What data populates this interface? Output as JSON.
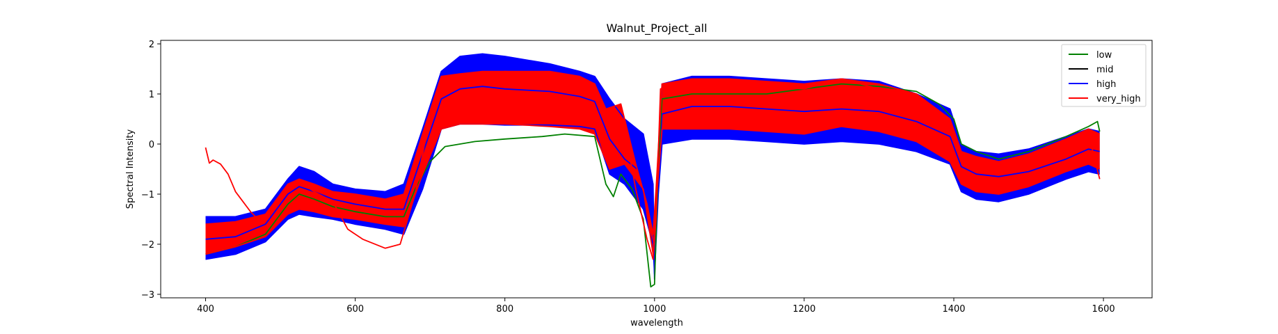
{
  "chart_data": {
    "type": "line",
    "title": "Walnut_Project_all",
    "xlabel": "wavelength",
    "ylabel": "Spectral Intensity",
    "xlim": [
      340,
      1665
    ],
    "ylim": [
      -3.07,
      2.07
    ],
    "xticks": [
      400,
      600,
      800,
      1000,
      1200,
      1400,
      1600
    ],
    "yticks": [
      -3,
      -2,
      -1,
      0,
      1,
      2
    ],
    "grid": false,
    "legend_position": "top-right",
    "series": [
      {
        "name": "low",
        "color": "#008000"
      },
      {
        "name": "mid",
        "color": "#000000"
      },
      {
        "name": "high",
        "color": "#0000ff"
      },
      {
        "name": "very_high",
        "color": "#ff0000"
      }
    ],
    "curves": [
      {
        "series": "high",
        "points": [
          [
            400,
            -1.45
          ],
          [
            440,
            -1.45
          ],
          [
            480,
            -1.3
          ],
          [
            510,
            -0.7
          ],
          [
            525,
            -0.45
          ],
          [
            545,
            -0.55
          ],
          [
            570,
            -0.8
          ],
          [
            600,
            -0.9
          ],
          [
            640,
            -0.95
          ],
          [
            665,
            -0.8
          ],
          [
            690,
            0.3
          ],
          [
            715,
            1.45
          ],
          [
            740,
            1.75
          ],
          [
            770,
            1.8
          ],
          [
            800,
            1.75
          ],
          [
            860,
            1.6
          ],
          [
            900,
            1.45
          ],
          [
            920,
            1.35
          ],
          [
            940,
            0.9
          ],
          [
            960,
            0.5
          ],
          [
            985,
            0.2
          ],
          [
            998,
            -0.8
          ],
          [
            1000,
            -2.7
          ],
          [
            1005,
            -0.3
          ],
          [
            1010,
            1.2
          ],
          [
            1050,
            1.35
          ],
          [
            1100,
            1.35
          ],
          [
            1150,
            1.3
          ],
          [
            1200,
            1.25
          ],
          [
            1250,
            1.3
          ],
          [
            1300,
            1.25
          ],
          [
            1350,
            1.0
          ],
          [
            1395,
            0.7
          ],
          [
            1410,
            0.0
          ],
          [
            1430,
            -0.15
          ],
          [
            1460,
            -0.2
          ],
          [
            1500,
            -0.1
          ],
          [
            1550,
            0.15
          ],
          [
            1580,
            0.3
          ],
          [
            1595,
            0.25
          ]
        ]
      },
      {
        "series": "high",
        "points": [
          [
            400,
            -2.3
          ],
          [
            440,
            -2.2
          ],
          [
            480,
            -1.95
          ],
          [
            510,
            -1.5
          ],
          [
            525,
            -1.4
          ],
          [
            545,
            -1.45
          ],
          [
            570,
            -1.5
          ],
          [
            600,
            -1.6
          ],
          [
            640,
            -1.7
          ],
          [
            665,
            -1.8
          ],
          [
            690,
            -0.9
          ],
          [
            715,
            0.3
          ],
          [
            740,
            0.4
          ],
          [
            770,
            0.4
          ],
          [
            800,
            0.38
          ],
          [
            860,
            0.38
          ],
          [
            900,
            0.35
          ],
          [
            920,
            0.3
          ],
          [
            940,
            -0.6
          ],
          [
            960,
            -0.8
          ],
          [
            985,
            -1.3
          ],
          [
            998,
            -2.0
          ],
          [
            1000,
            -2.6
          ],
          [
            1005,
            -1.0
          ],
          [
            1010,
            0.0
          ],
          [
            1050,
            0.1
          ],
          [
            1100,
            0.1
          ],
          [
            1150,
            0.05
          ],
          [
            1200,
            0.0
          ],
          [
            1250,
            0.05
          ],
          [
            1300,
            0.0
          ],
          [
            1350,
            -0.15
          ],
          [
            1395,
            -0.4
          ],
          [
            1410,
            -0.95
          ],
          [
            1430,
            -1.1
          ],
          [
            1460,
            -1.15
          ],
          [
            1500,
            -1.0
          ],
          [
            1550,
            -0.7
          ],
          [
            1580,
            -0.55
          ],
          [
            1595,
            -0.6
          ]
        ]
      },
      {
        "series": "high",
        "points": [
          [
            400,
            -1.9
          ],
          [
            440,
            -1.85
          ],
          [
            480,
            -1.6
          ],
          [
            510,
            -1.0
          ],
          [
            525,
            -0.85
          ],
          [
            545,
            -0.95
          ],
          [
            570,
            -1.1
          ],
          [
            600,
            -1.2
          ],
          [
            640,
            -1.3
          ],
          [
            665,
            -1.3
          ],
          [
            690,
            -0.2
          ],
          [
            715,
            0.9
          ],
          [
            740,
            1.1
          ],
          [
            770,
            1.15
          ],
          [
            800,
            1.1
          ],
          [
            860,
            1.05
          ],
          [
            900,
            0.95
          ],
          [
            920,
            0.85
          ],
          [
            940,
            0.1
          ],
          [
            960,
            -0.3
          ],
          [
            985,
            -0.6
          ],
          [
            998,
            -1.5
          ],
          [
            1000,
            -2.4
          ],
          [
            1005,
            -0.6
          ],
          [
            1010,
            0.6
          ],
          [
            1050,
            0.75
          ],
          [
            1100,
            0.75
          ],
          [
            1150,
            0.7
          ],
          [
            1200,
            0.65
          ],
          [
            1250,
            0.7
          ],
          [
            1300,
            0.65
          ],
          [
            1350,
            0.45
          ],
          [
            1395,
            0.15
          ],
          [
            1410,
            -0.45
          ],
          [
            1430,
            -0.6
          ],
          [
            1460,
            -0.65
          ],
          [
            1500,
            -0.55
          ],
          [
            1550,
            -0.3
          ],
          [
            1580,
            -0.1
          ],
          [
            1595,
            -0.15
          ]
        ]
      },
      {
        "series": "low",
        "points": [
          [
            400,
            -2.2
          ],
          [
            440,
            -2.05
          ],
          [
            480,
            -1.8
          ],
          [
            510,
            -1.2
          ],
          [
            525,
            -1.0
          ],
          [
            545,
            -1.1
          ],
          [
            570,
            -1.25
          ],
          [
            600,
            -1.35
          ],
          [
            640,
            -1.45
          ],
          [
            665,
            -1.45
          ],
          [
            680,
            -0.9
          ],
          [
            700,
            -0.35
          ],
          [
            720,
            -0.05
          ],
          [
            760,
            0.05
          ],
          [
            800,
            0.1
          ],
          [
            850,
            0.15
          ],
          [
            880,
            0.2
          ],
          [
            920,
            0.15
          ],
          [
            935,
            -0.8
          ],
          [
            945,
            -1.05
          ],
          [
            955,
            -0.6
          ],
          [
            970,
            -0.9
          ],
          [
            985,
            -1.5
          ],
          [
            995,
            -2.85
          ],
          [
            1000,
            -2.8
          ],
          [
            1005,
            -0.4
          ],
          [
            1010,
            0.9
          ],
          [
            1050,
            1.0
          ],
          [
            1100,
            1.0
          ],
          [
            1150,
            1.0
          ],
          [
            1200,
            1.1
          ],
          [
            1250,
            1.2
          ],
          [
            1300,
            1.15
          ],
          [
            1350,
            1.05
          ],
          [
            1380,
            0.8
          ],
          [
            1400,
            0.5
          ],
          [
            1410,
            0.0
          ],
          [
            1430,
            -0.15
          ],
          [
            1460,
            -0.3
          ],
          [
            1500,
            -0.15
          ],
          [
            1550,
            0.15
          ],
          [
            1580,
            0.35
          ],
          [
            1592,
            0.45
          ],
          [
            1595,
            0.25
          ]
        ]
      },
      {
        "series": "very_high",
        "points": [
          [
            400,
            -0.07
          ],
          [
            405,
            -0.38
          ],
          [
            410,
            -0.32
          ],
          [
            420,
            -0.4
          ],
          [
            430,
            -0.6
          ],
          [
            440,
            -0.95
          ],
          [
            450,
            -1.15
          ],
          [
            460,
            -1.35
          ],
          [
            470,
            -1.5
          ],
          [
            490,
            -1.35
          ],
          [
            510,
            -0.9
          ],
          [
            525,
            -0.75
          ],
          [
            545,
            -0.95
          ],
          [
            570,
            -1.15
          ],
          [
            590,
            -1.7
          ],
          [
            610,
            -1.9
          ],
          [
            640,
            -2.08
          ],
          [
            660,
            -2.0
          ],
          [
            680,
            -1.0
          ],
          [
            700,
            0.6
          ],
          [
            715,
            1.3
          ],
          [
            740,
            1.35
          ],
          [
            800,
            1.45
          ],
          [
            860,
            1.4
          ],
          [
            900,
            1.3
          ],
          [
            920,
            1.2
          ],
          [
            940,
            0.4
          ],
          [
            960,
            0.3
          ],
          [
            975,
            -0.9
          ],
          [
            990,
            -1.9
          ],
          [
            998,
            -2.3
          ],
          [
            1002,
            -1.5
          ],
          [
            1008,
            1.1
          ],
          [
            1050,
            1.25
          ],
          [
            1100,
            1.2
          ],
          [
            1150,
            1.15
          ],
          [
            1200,
            1.1
          ],
          [
            1250,
            1.3
          ],
          [
            1300,
            1.1
          ],
          [
            1350,
            0.9
          ],
          [
            1395,
            0.4
          ],
          [
            1410,
            -0.2
          ],
          [
            1430,
            -0.3
          ],
          [
            1460,
            -0.4
          ],
          [
            1500,
            -0.25
          ],
          [
            1550,
            0.05
          ],
          [
            1580,
            0.2
          ],
          [
            1595,
            -0.7
          ]
        ]
      },
      {
        "series": "very_high",
        "points": [
          [
            400,
            -2.2
          ],
          [
            440,
            -2.05
          ],
          [
            480,
            -1.85
          ],
          [
            510,
            -1.4
          ],
          [
            525,
            -1.3
          ],
          [
            545,
            -1.35
          ],
          [
            570,
            -1.45
          ],
          [
            600,
            -1.5
          ],
          [
            640,
            -1.6
          ],
          [
            665,
            -1.65
          ],
          [
            690,
            -0.6
          ],
          [
            715,
            0.3
          ],
          [
            740,
            0.4
          ],
          [
            770,
            0.4
          ],
          [
            800,
            0.4
          ],
          [
            860,
            0.35
          ],
          [
            900,
            0.3
          ],
          [
            920,
            0.2
          ],
          [
            940,
            -0.5
          ],
          [
            960,
            -0.4
          ],
          [
            985,
            -0.9
          ],
          [
            998,
            -2.2
          ],
          [
            1002,
            -1.2
          ],
          [
            1010,
            0.3
          ],
          [
            1050,
            0.3
          ],
          [
            1100,
            0.3
          ],
          [
            1150,
            0.25
          ],
          [
            1200,
            0.2
          ],
          [
            1250,
            0.35
          ],
          [
            1300,
            0.25
          ],
          [
            1350,
            0.05
          ],
          [
            1395,
            -0.35
          ],
          [
            1410,
            -0.8
          ],
          [
            1430,
            -0.95
          ],
          [
            1460,
            -1.0
          ],
          [
            1500,
            -0.85
          ],
          [
            1550,
            -0.55
          ],
          [
            1580,
            -0.4
          ],
          [
            1595,
            -0.5
          ]
        ]
      },
      {
        "series": "very_high",
        "points": [
          [
            400,
            -1.6
          ],
          [
            440,
            -1.55
          ],
          [
            480,
            -1.4
          ],
          [
            510,
            -0.8
          ],
          [
            525,
            -0.7
          ],
          [
            545,
            -0.8
          ],
          [
            570,
            -0.95
          ],
          [
            600,
            -1.0
          ],
          [
            640,
            -1.1
          ],
          [
            665,
            -1.0
          ],
          [
            690,
            0.2
          ],
          [
            715,
            1.35
          ],
          [
            740,
            1.4
          ],
          [
            770,
            1.45
          ],
          [
            800,
            1.45
          ],
          [
            860,
            1.45
          ],
          [
            900,
            1.35
          ],
          [
            920,
            1.2
          ],
          [
            935,
            0.7
          ],
          [
            955,
            0.8
          ],
          [
            975,
            -0.4
          ],
          [
            990,
            -1.2
          ],
          [
            998,
            -1.8
          ],
          [
            1002,
            -0.9
          ],
          [
            1010,
            1.2
          ],
          [
            1050,
            1.3
          ],
          [
            1100,
            1.3
          ],
          [
            1150,
            1.25
          ],
          [
            1200,
            1.2
          ],
          [
            1250,
            1.3
          ],
          [
            1300,
            1.2
          ],
          [
            1350,
            1.0
          ],
          [
            1395,
            0.5
          ],
          [
            1410,
            -0.15
          ],
          [
            1430,
            -0.25
          ],
          [
            1460,
            -0.35
          ],
          [
            1500,
            -0.2
          ],
          [
            1550,
            0.1
          ],
          [
            1580,
            0.3
          ],
          [
            1595,
            0.2
          ]
        ]
      }
    ]
  }
}
